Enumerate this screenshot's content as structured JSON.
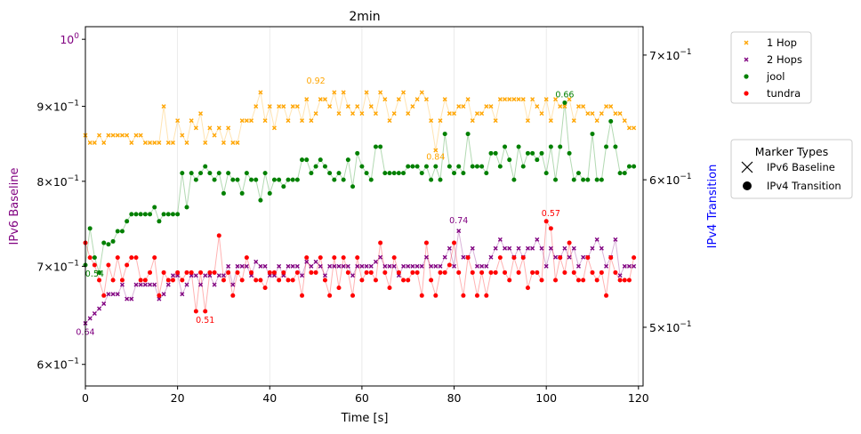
{
  "chart_data": {
    "type": "scatter",
    "title": "2min",
    "xlabel": "Time [s]",
    "ylabel_left": "IPv6 Baseline",
    "ylabel_right": "IPv4 Transition",
    "xlim": [
      0,
      121
    ],
    "ylim_left": [
      0.58,
      1.02
    ],
    "ylim_right": [
      0.465,
      0.725
    ],
    "scale": "log",
    "grid": "x-only",
    "legend_position": "outside-right",
    "xticks": [
      "0",
      "20",
      "40",
      "60",
      "80",
      "100",
      "120"
    ],
    "yticks_left": [
      {
        "value": 0.6,
        "mant": "6",
        "exp": "−1"
      },
      {
        "value": 0.7,
        "mant": "7",
        "exp": "−1"
      },
      {
        "value": 0.8,
        "mant": "8",
        "exp": "−1"
      },
      {
        "value": 0.9,
        "mant": "9",
        "exp": "−1"
      },
      {
        "value": 1.0,
        "mant": "",
        "exp": "0"
      }
    ],
    "yticks_right": [
      {
        "value": 0.5,
        "mant": "5",
        "exp": "−1"
      },
      {
        "value": 0.6,
        "mant": "6",
        "exp": "−1"
      },
      {
        "value": 0.7,
        "mant": "7",
        "exp": "−1"
      }
    ],
    "series": [
      {
        "name": "1 Hop",
        "axis": "left",
        "marker": "x",
        "color": "#ffa500",
        "x": [
          0,
          1,
          2,
          3,
          4,
          5,
          6,
          7,
          8,
          9,
          10,
          11,
          12,
          13,
          14,
          15,
          16,
          17,
          18,
          19,
          20,
          21,
          22,
          23,
          24,
          25,
          26,
          27,
          28,
          29,
          30,
          31,
          32,
          33,
          34,
          35,
          36,
          37,
          38,
          39,
          40,
          41,
          42,
          43,
          44,
          45,
          46,
          47,
          48,
          49,
          50,
          51,
          52,
          53,
          54,
          55,
          56,
          57,
          58,
          59,
          60,
          61,
          62,
          63,
          64,
          65,
          66,
          67,
          68,
          69,
          70,
          71,
          72,
          73,
          74,
          75,
          76,
          77,
          78,
          79,
          80,
          81,
          82,
          83,
          84,
          85,
          86,
          87,
          88,
          89,
          90,
          91,
          92,
          93,
          94,
          95,
          96,
          97,
          98,
          99,
          100,
          101,
          102,
          103,
          104,
          105,
          106,
          107,
          108,
          109,
          110,
          111,
          112,
          113,
          114,
          115,
          116,
          117,
          118,
          119
        ],
        "y": [
          0.86,
          0.85,
          0.85,
          0.86,
          0.85,
          0.86,
          0.86,
          0.86,
          0.86,
          0.86,
          0.85,
          0.86,
          0.86,
          0.85,
          0.85,
          0.85,
          0.85,
          0.9,
          0.85,
          0.85,
          0.88,
          0.86,
          0.85,
          0.88,
          0.87,
          0.89,
          0.85,
          0.87,
          0.86,
          0.87,
          0.85,
          0.87,
          0.85,
          0.85,
          0.88,
          0.88,
          0.88,
          0.9,
          0.92,
          0.88,
          0.9,
          0.87,
          0.9,
          0.9,
          0.88,
          0.9,
          0.9,
          0.88,
          0.91,
          0.88,
          0.89,
          0.91,
          0.91,
          0.9,
          0.92,
          0.89,
          0.92,
          0.9,
          0.89,
          0.9,
          0.89,
          0.92,
          0.9,
          0.89,
          0.92,
          0.91,
          0.88,
          0.89,
          0.91,
          0.92,
          0.89,
          0.9,
          0.91,
          0.92,
          0.91,
          0.88,
          0.84,
          0.88,
          0.91,
          0.89,
          0.89,
          0.9,
          0.9,
          0.91,
          0.88,
          0.89,
          0.89,
          0.9,
          0.9,
          0.88,
          0.91,
          0.91,
          0.91,
          0.91,
          0.91,
          0.91,
          0.88,
          0.91,
          0.9,
          0.89,
          0.91,
          0.88,
          0.91,
          0.9,
          0.9,
          0.91,
          0.88,
          0.9,
          0.9,
          0.89,
          0.89,
          0.88,
          0.89,
          0.9,
          0.9,
          0.89,
          0.89,
          0.88,
          0.87,
          0.87
        ]
      },
      {
        "name": "2 Hops",
        "axis": "left",
        "marker": "x",
        "color": "#800080",
        "x": [
          0,
          1,
          2,
          3,
          4,
          5,
          6,
          7,
          8,
          9,
          10,
          11,
          12,
          13,
          14,
          15,
          16,
          17,
          18,
          19,
          20,
          21,
          22,
          23,
          24,
          25,
          26,
          27,
          28,
          29,
          30,
          31,
          32,
          33,
          34,
          35,
          36,
          37,
          38,
          39,
          40,
          41,
          42,
          43,
          44,
          45,
          46,
          47,
          48,
          49,
          50,
          51,
          52,
          53,
          54,
          55,
          56,
          57,
          58,
          59,
          60,
          61,
          62,
          63,
          64,
          65,
          66,
          67,
          68,
          69,
          70,
          71,
          72,
          73,
          74,
          75,
          76,
          77,
          78,
          79,
          80,
          81,
          82,
          83,
          84,
          85,
          86,
          87,
          88,
          89,
          90,
          91,
          92,
          93,
          94,
          95,
          96,
          97,
          98,
          99,
          100,
          101,
          102,
          103,
          104,
          105,
          106,
          107,
          108,
          109,
          110,
          111,
          112,
          113,
          114,
          115,
          116,
          117,
          118,
          119
        ],
        "y": [
          0.64,
          0.645,
          0.65,
          0.655,
          0.66,
          0.67,
          0.67,
          0.67,
          0.68,
          0.665,
          0.665,
          0.68,
          0.68,
          0.68,
          0.68,
          0.68,
          0.665,
          0.67,
          0.68,
          0.69,
          0.69,
          0.67,
          0.68,
          0.69,
          0.69,
          0.68,
          0.69,
          0.69,
          0.68,
          0.69,
          0.69,
          0.7,
          0.68,
          0.7,
          0.7,
          0.7,
          0.69,
          0.705,
          0.7,
          0.7,
          0.69,
          0.69,
          0.7,
          0.69,
          0.7,
          0.7,
          0.7,
          0.69,
          0.705,
          0.7,
          0.705,
          0.7,
          0.69,
          0.7,
          0.7,
          0.7,
          0.7,
          0.7,
          0.69,
          0.7,
          0.7,
          0.7,
          0.7,
          0.705,
          0.71,
          0.7,
          0.7,
          0.7,
          0.69,
          0.7,
          0.7,
          0.7,
          0.7,
          0.7,
          0.71,
          0.7,
          0.7,
          0.7,
          0.71,
          0.72,
          0.7,
          0.74,
          0.71,
          0.71,
          0.72,
          0.7,
          0.7,
          0.7,
          0.71,
          0.72,
          0.73,
          0.72,
          0.72,
          0.71,
          0.72,
          0.71,
          0.72,
          0.72,
          0.73,
          0.72,
          0.7,
          0.72,
          0.71,
          0.71,
          0.72,
          0.71,
          0.72,
          0.7,
          0.71,
          0.71,
          0.72,
          0.73,
          0.72,
          0.7,
          0.71,
          0.73,
          0.69,
          0.7,
          0.7,
          0.7
        ]
      },
      {
        "name": "jool",
        "axis": "right",
        "marker": "o",
        "color": "#008000",
        "x": [
          0,
          1,
          2,
          3,
          4,
          5,
          6,
          7,
          8,
          9,
          10,
          11,
          12,
          13,
          14,
          15,
          16,
          17,
          18,
          19,
          20,
          21,
          22,
          23,
          24,
          25,
          26,
          27,
          28,
          29,
          30,
          31,
          32,
          33,
          34,
          35,
          36,
          37,
          38,
          39,
          40,
          41,
          42,
          43,
          44,
          45,
          46,
          47,
          48,
          49,
          50,
          51,
          52,
          53,
          54,
          55,
          56,
          57,
          58,
          59,
          60,
          61,
          62,
          63,
          64,
          65,
          66,
          67,
          68,
          69,
          70,
          71,
          72,
          73,
          74,
          75,
          76,
          77,
          78,
          79,
          80,
          81,
          82,
          83,
          84,
          85,
          86,
          87,
          88,
          89,
          90,
          91,
          92,
          93,
          94,
          95,
          96,
          97,
          98,
          99,
          100,
          101,
          102,
          103,
          104,
          105,
          106,
          107,
          108,
          109,
          110,
          111,
          112,
          113,
          114,
          115,
          116,
          117,
          118,
          119
        ],
        "y": [
          0.54,
          0.565,
          0.545,
          0.535,
          0.555,
          0.554,
          0.556,
          0.563,
          0.563,
          0.57,
          0.575,
          0.575,
          0.575,
          0.575,
          0.575,
          0.58,
          0.57,
          0.575,
          0.575,
          0.575,
          0.575,
          0.605,
          0.58,
          0.605,
          0.6,
          0.605,
          0.61,
          0.605,
          0.6,
          0.605,
          0.59,
          0.605,
          0.6,
          0.6,
          0.59,
          0.605,
          0.6,
          0.6,
          0.585,
          0.605,
          0.59,
          0.6,
          0.6,
          0.595,
          0.6,
          0.6,
          0.6,
          0.615,
          0.615,
          0.605,
          0.61,
          0.615,
          0.61,
          0.605,
          0.6,
          0.605,
          0.6,
          0.615,
          0.595,
          0.62,
          0.61,
          0.605,
          0.6,
          0.625,
          0.625,
          0.605,
          0.605,
          0.605,
          0.605,
          0.605,
          0.61,
          0.61,
          0.61,
          0.605,
          0.61,
          0.6,
          0.61,
          0.6,
          0.635,
          0.61,
          0.605,
          0.61,
          0.605,
          0.635,
          0.61,
          0.61,
          0.61,
          0.605,
          0.62,
          0.62,
          0.61,
          0.625,
          0.615,
          0.6,
          0.625,
          0.61,
          0.62,
          0.62,
          0.615,
          0.62,
          0.605,
          0.625,
          0.6,
          0.625,
          0.66,
          0.62,
          0.6,
          0.605,
          0.6,
          0.6,
          0.635,
          0.6,
          0.6,
          0.625,
          0.645,
          0.625,
          0.605,
          0.605,
          0.61,
          0.61
        ]
      },
      {
        "name": "tundra",
        "axis": "right",
        "marker": "o",
        "color": "#ff0000",
        "x": [
          0,
          1,
          2,
          3,
          4,
          5,
          6,
          7,
          8,
          9,
          10,
          11,
          12,
          13,
          14,
          15,
          16,
          17,
          18,
          19,
          20,
          21,
          22,
          23,
          24,
          25,
          26,
          27,
          28,
          29,
          30,
          31,
          32,
          33,
          34,
          35,
          36,
          37,
          38,
          39,
          40,
          41,
          42,
          43,
          44,
          45,
          46,
          47,
          48,
          49,
          50,
          51,
          52,
          53,
          54,
          55,
          56,
          57,
          58,
          59,
          60,
          61,
          62,
          63,
          64,
          65,
          66,
          67,
          68,
          69,
          70,
          71,
          72,
          73,
          74,
          75,
          76,
          77,
          78,
          79,
          80,
          81,
          82,
          83,
          84,
          85,
          86,
          87,
          88,
          89,
          90,
          91,
          92,
          93,
          94,
          95,
          96,
          97,
          98,
          99,
          100,
          101,
          102,
          103,
          104,
          105,
          106,
          107,
          108,
          109,
          110,
          111,
          112,
          113,
          114,
          115,
          116,
          117,
          118,
          119
        ],
        "y": [
          0.555,
          0.545,
          0.54,
          0.53,
          0.52,
          0.54,
          0.53,
          0.545,
          0.53,
          0.54,
          0.545,
          0.545,
          0.53,
          0.53,
          0.535,
          0.545,
          0.52,
          0.535,
          0.53,
          0.53,
          0.535,
          0.53,
          0.535,
          0.535,
          0.51,
          0.535,
          0.51,
          0.535,
          0.535,
          0.56,
          0.53,
          0.535,
          0.52,
          0.535,
          0.53,
          0.545,
          0.535,
          0.53,
          0.53,
          0.525,
          0.535,
          0.535,
          0.53,
          0.535,
          0.53,
          0.53,
          0.535,
          0.52,
          0.545,
          0.535,
          0.535,
          0.545,
          0.53,
          0.52,
          0.545,
          0.525,
          0.545,
          0.535,
          0.52,
          0.545,
          0.53,
          0.535,
          0.535,
          0.53,
          0.555,
          0.535,
          0.525,
          0.545,
          0.535,
          0.53,
          0.53,
          0.535,
          0.535,
          0.52,
          0.555,
          0.53,
          0.52,
          0.535,
          0.535,
          0.54,
          0.555,
          0.535,
          0.52,
          0.545,
          0.535,
          0.52,
          0.535,
          0.52,
          0.535,
          0.535,
          0.545,
          0.535,
          0.53,
          0.545,
          0.535,
          0.545,
          0.525,
          0.535,
          0.535,
          0.53,
          0.57,
          0.565,
          0.53,
          0.545,
          0.535,
          0.555,
          0.535,
          0.53,
          0.53,
          0.545,
          0.535,
          0.53,
          0.535,
          0.52,
          0.545,
          0.535,
          0.53,
          0.53,
          0.53,
          0.545
        ]
      }
    ],
    "annotations": [
      {
        "text": "0.92",
        "series": "1 Hop",
        "x": 50,
        "y": 0.925
      },
      {
        "text": "0.84",
        "series": "1 Hop",
        "x": 76,
        "y": 0.843
      },
      {
        "text": "0.64",
        "series": "2 Hops",
        "x": 0,
        "y": 0.64
      },
      {
        "text": "0.74",
        "series": "2 Hops",
        "x": 81,
        "y": 0.743
      },
      {
        "text": "0.66",
        "series": "jool",
        "x": 104,
        "y": 0.66
      },
      {
        "text": "0.54",
        "series": "jool",
        "x": 2,
        "y": 0.54
      },
      {
        "text": "0.51",
        "series": "tundra",
        "x": 26,
        "y": 0.51
      },
      {
        "text": "0.57",
        "series": "tundra",
        "x": 101,
        "y": 0.57
      }
    ],
    "legend_markers": {
      "title": "Marker Types",
      "items": [
        {
          "label": "IPv6 Baseline",
          "marker": "x"
        },
        {
          "label": "IPv4 Transition",
          "marker": "o"
        }
      ]
    },
    "colors": {
      "left_axis_label": "#800080",
      "right_axis_label": "#0000ff",
      "tick_ten": "10"
    }
  }
}
